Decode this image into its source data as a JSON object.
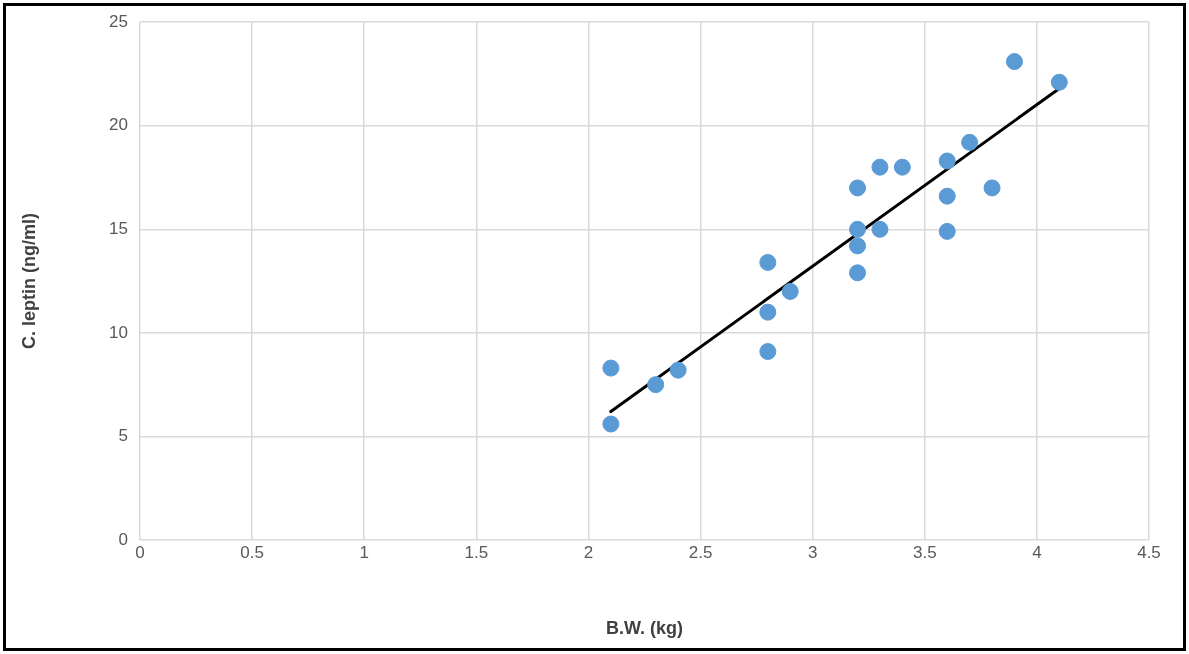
{
  "chart_data": {
    "type": "scatter",
    "xlabel": "B.W. (kg)",
    "ylabel": "C. leptin (ng/ml)",
    "xlim": [
      0,
      4.5
    ],
    "xticks": [
      0,
      0.5,
      1,
      1.5,
      2,
      2.5,
      3,
      3.5,
      4,
      4.5
    ],
    "ylim": [
      0,
      25
    ],
    "yticks": [
      0,
      5,
      10,
      15,
      20,
      25
    ],
    "grid": true,
    "legend": false,
    "series": [
      {
        "marker": "circle",
        "color": "#5b9bd5",
        "x": [
          2.1,
          2.1,
          2.3,
          2.4,
          2.8,
          2.8,
          2.8,
          2.9,
          3.2,
          3.2,
          3.2,
          3.2,
          3.3,
          3.3,
          3.4,
          3.6,
          3.6,
          3.6,
          3.7,
          3.8,
          3.9,
          4.1
        ],
        "values": [
          8.3,
          5.6,
          7.5,
          8.2,
          13.4,
          11.0,
          9.1,
          12.0,
          17.0,
          15.0,
          14.2,
          12.9,
          18.0,
          15.0,
          18.0,
          18.3,
          16.6,
          14.9,
          19.2,
          17.0,
          23.1,
          22.1
        ]
      },
      {
        "type": "line",
        "marker": "none",
        "color": "#000000",
        "x": [
          2.1,
          4.1
        ],
        "values": [
          6.2,
          21.8
        ]
      }
    ]
  }
}
